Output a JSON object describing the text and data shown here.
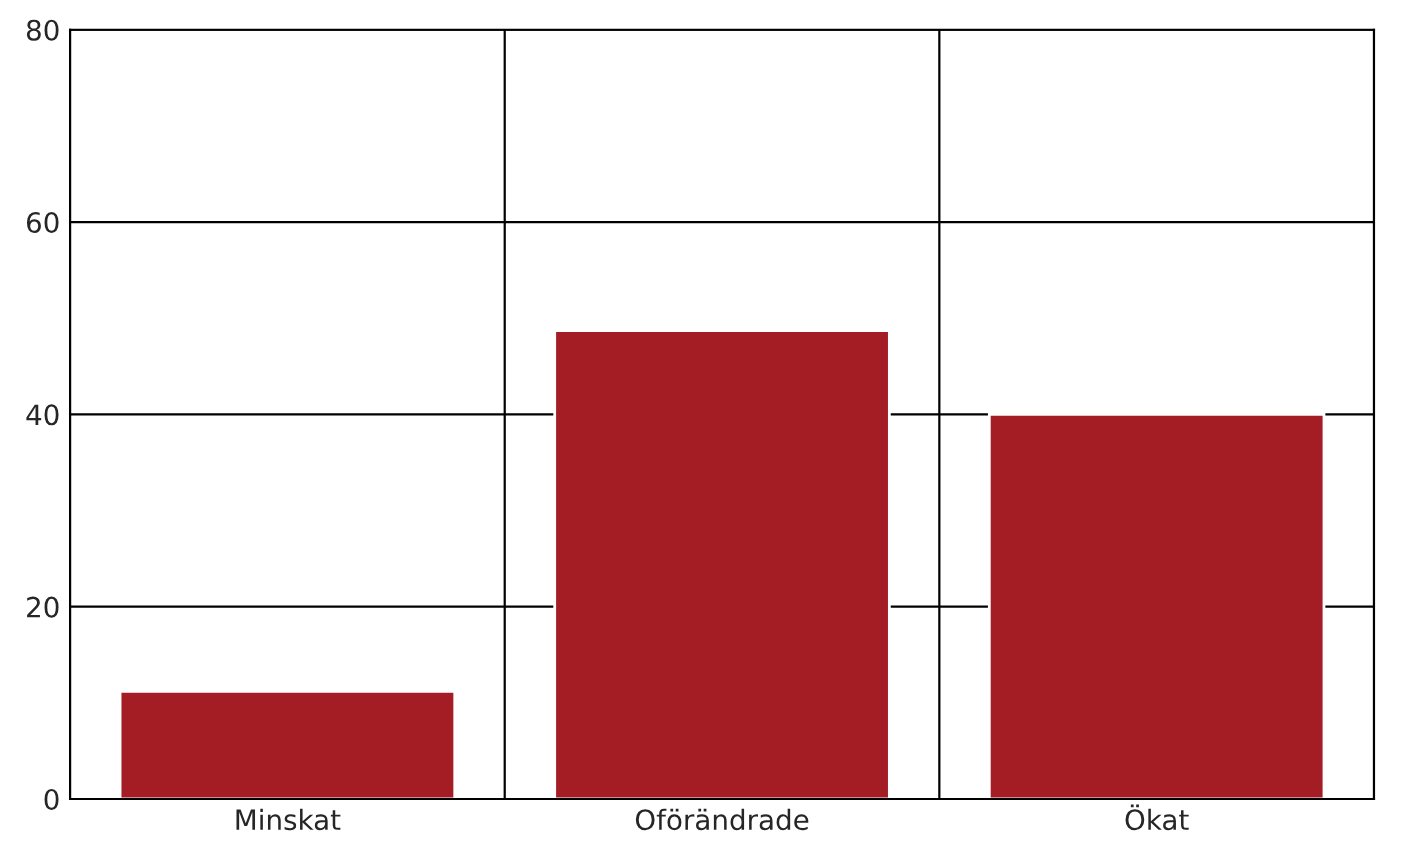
{
  "chart_data": {
    "type": "bar",
    "categories": [
      "Minskat",
      "Oförändrade",
      "Ökat"
    ],
    "values": [
      11.2,
      48.7,
      40.0
    ],
    "color": "#a51d24",
    "ylim": [
      0,
      80
    ],
    "yticks": [
      0,
      20,
      40,
      60,
      80
    ],
    "grid": true,
    "legend": false
  }
}
